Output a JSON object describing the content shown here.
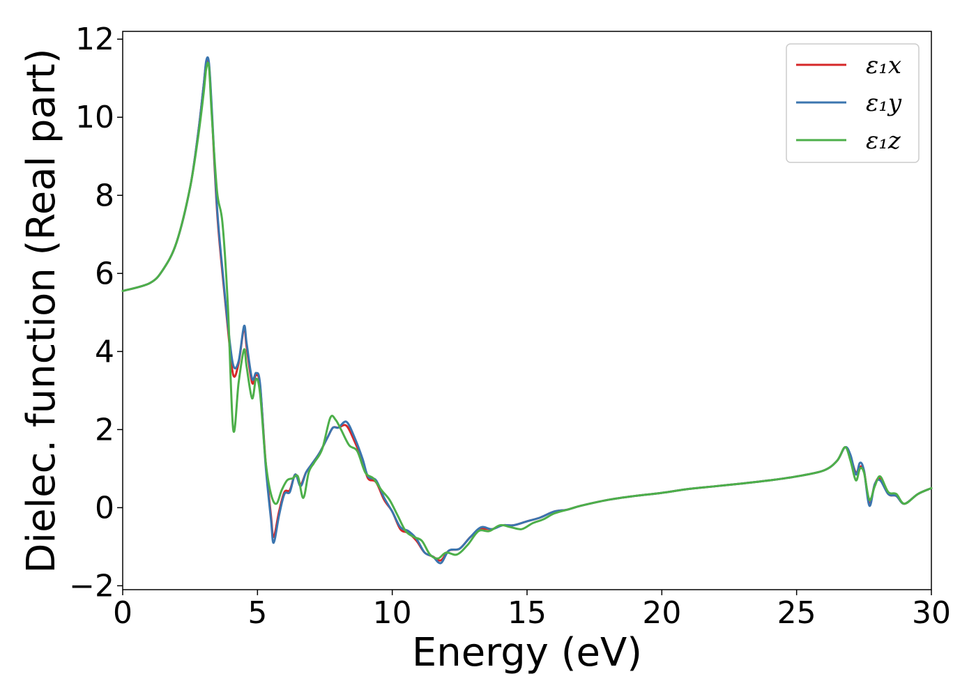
{
  "chart_data": {
    "type": "line",
    "xlabel": "Energy (eV)",
    "ylabel": "Dielec. function (Real part)",
    "xlim": [
      0,
      30
    ],
    "ylim": [
      -2.1,
      12.2
    ],
    "xticks": [
      0,
      5,
      10,
      15,
      20,
      25,
      30
    ],
    "xtick_labels": [
      "0",
      "5",
      "10",
      "15",
      "20",
      "25",
      "30"
    ],
    "yticks": [
      -2,
      0,
      2,
      4,
      6,
      8,
      10,
      12
    ],
    "ytick_labels": [
      "−2",
      "0",
      "2",
      "4",
      "6",
      "8",
      "10",
      "12"
    ],
    "grid": false,
    "legend_position": "top-right",
    "series": [
      {
        "name": "ε₁x",
        "color": "#d62728",
        "x": [
          0,
          1,
          1.5,
          2,
          2.5,
          2.8,
          3.0,
          3.1,
          3.2,
          3.3,
          3.5,
          3.7,
          3.9,
          4.1,
          4.3,
          4.5,
          4.6,
          4.8,
          4.95,
          5.1,
          5.3,
          5.5,
          5.6,
          5.8,
          6.0,
          6.2,
          6.4,
          6.6,
          6.8,
          7.0,
          7.3,
          7.6,
          7.8,
          8.0,
          8.3,
          8.6,
          8.9,
          9.1,
          9.4,
          9.7,
          10.0,
          10.3,
          10.6,
          10.9,
          11.2,
          11.5,
          11.8,
          12.1,
          12.5,
          12.9,
          13.3,
          13.7,
          14.1,
          14.5,
          15.0,
          15.5,
          16.0,
          16.5,
          17.0,
          18.0,
          19.0,
          20.0,
          21.0,
          22.0,
          23.0,
          24.0,
          25.0,
          26.0,
          26.5,
          26.8,
          27.0,
          27.2,
          27.35,
          27.5,
          27.7,
          27.9,
          28.1,
          28.4,
          28.7,
          29.0,
          29.5,
          30.0
        ],
        "y": [
          5.55,
          5.75,
          6.1,
          6.8,
          8.2,
          9.6,
          10.8,
          11.4,
          11.35,
          10.2,
          7.6,
          6.0,
          4.6,
          3.4,
          3.7,
          4.6,
          4.1,
          3.2,
          3.4,
          3.1,
          1.2,
          -0.2,
          -0.75,
          -0.1,
          0.4,
          0.45,
          0.85,
          0.6,
          0.9,
          1.1,
          1.4,
          1.8,
          2.05,
          2.05,
          2.1,
          1.7,
          1.2,
          0.75,
          0.65,
          0.2,
          -0.1,
          -0.55,
          -0.65,
          -0.85,
          -1.15,
          -1.25,
          -1.35,
          -1.1,
          -1.05,
          -0.75,
          -0.55,
          -0.55,
          -0.45,
          -0.45,
          -0.35,
          -0.25,
          -0.1,
          -0.05,
          0.05,
          0.2,
          0.3,
          0.38,
          0.48,
          0.55,
          0.62,
          0.7,
          0.8,
          0.95,
          1.2,
          1.55,
          1.3,
          0.9,
          1.05,
          0.95,
          0.1,
          0.6,
          0.75,
          0.35,
          0.3,
          0.1,
          0.35,
          0.5
        ]
      },
      {
        "name": "ε₁y",
        "color": "#3b75af",
        "x": [
          0,
          1,
          1.5,
          2,
          2.5,
          2.8,
          3.0,
          3.1,
          3.2,
          3.3,
          3.5,
          3.7,
          3.9,
          4.1,
          4.3,
          4.5,
          4.6,
          4.8,
          4.95,
          5.1,
          5.3,
          5.5,
          5.6,
          5.8,
          6.0,
          6.2,
          6.4,
          6.6,
          6.8,
          7.0,
          7.3,
          7.6,
          7.8,
          8.0,
          8.3,
          8.6,
          8.9,
          9.1,
          9.4,
          9.7,
          10.0,
          10.3,
          10.6,
          10.9,
          11.2,
          11.5,
          11.8,
          12.1,
          12.5,
          12.9,
          13.3,
          13.7,
          14.1,
          14.5,
          15.0,
          15.5,
          16.0,
          16.5,
          17.0,
          18.0,
          19.0,
          20.0,
          21.0,
          22.0,
          23.0,
          24.0,
          25.0,
          26.0,
          26.5,
          26.8,
          27.0,
          27.2,
          27.35,
          27.5,
          27.7,
          27.9,
          28.1,
          28.4,
          28.7,
          29.0,
          29.5,
          30.0
        ],
        "y": [
          5.55,
          5.75,
          6.1,
          6.8,
          8.2,
          9.6,
          10.8,
          11.45,
          11.4,
          10.3,
          7.7,
          6.1,
          4.7,
          3.65,
          3.75,
          4.65,
          4.2,
          3.3,
          3.45,
          3.15,
          1.1,
          -0.3,
          -0.9,
          -0.2,
          0.35,
          0.4,
          0.85,
          0.55,
          0.9,
          1.1,
          1.4,
          1.8,
          2.05,
          2.05,
          2.2,
          1.8,
          1.25,
          0.8,
          0.7,
          0.25,
          -0.1,
          -0.5,
          -0.6,
          -0.8,
          -1.15,
          -1.25,
          -1.42,
          -1.1,
          -1.05,
          -0.75,
          -0.5,
          -0.55,
          -0.45,
          -0.45,
          -0.35,
          -0.25,
          -0.1,
          -0.05,
          0.05,
          0.2,
          0.3,
          0.38,
          0.48,
          0.55,
          0.62,
          0.7,
          0.8,
          0.95,
          1.2,
          1.55,
          1.35,
          0.85,
          1.15,
          0.95,
          0.05,
          0.6,
          0.7,
          0.35,
          0.3,
          0.1,
          0.35,
          0.5
        ]
      },
      {
        "name": "ε₁z",
        "color": "#4daf4a",
        "x": [
          0,
          1,
          1.5,
          2,
          2.5,
          2.8,
          3.0,
          3.1,
          3.2,
          3.3,
          3.5,
          3.7,
          3.9,
          4.1,
          4.3,
          4.5,
          4.6,
          4.8,
          4.95,
          5.1,
          5.3,
          5.5,
          5.7,
          5.9,
          6.1,
          6.3,
          6.5,
          6.7,
          6.9,
          7.1,
          7.4,
          7.7,
          7.9,
          8.1,
          8.4,
          8.7,
          9.0,
          9.3,
          9.6,
          9.9,
          10.2,
          10.5,
          10.8,
          11.1,
          11.4,
          11.7,
          12.0,
          12.4,
          12.8,
          13.2,
          13.6,
          14.0,
          14.4,
          14.8,
          15.2,
          15.6,
          16.0,
          16.5,
          17.0,
          18.0,
          19.0,
          20.0,
          21.0,
          22.0,
          23.0,
          24.0,
          25.0,
          26.0,
          26.5,
          26.8,
          27.0,
          27.2,
          27.35,
          27.5,
          27.7,
          27.9,
          28.1,
          28.4,
          28.7,
          29.0,
          29.5,
          30.0
        ],
        "y": [
          5.55,
          5.75,
          6.1,
          6.8,
          8.2,
          9.5,
          10.6,
          11.25,
          11.3,
          10.1,
          8.1,
          7.3,
          5.2,
          2.0,
          3.2,
          4.05,
          3.6,
          2.8,
          3.3,
          2.9,
          1.2,
          0.35,
          0.1,
          0.45,
          0.7,
          0.75,
          0.8,
          0.25,
          0.9,
          1.15,
          1.5,
          2.3,
          2.25,
          2.0,
          1.6,
          1.45,
          0.9,
          0.75,
          0.45,
          0.2,
          -0.2,
          -0.6,
          -0.75,
          -0.85,
          -1.2,
          -1.3,
          -1.15,
          -1.2,
          -0.95,
          -0.6,
          -0.6,
          -0.45,
          -0.5,
          -0.55,
          -0.4,
          -0.3,
          -0.15,
          -0.05,
          0.05,
          0.2,
          0.3,
          0.38,
          0.48,
          0.55,
          0.62,
          0.7,
          0.8,
          0.95,
          1.2,
          1.55,
          1.2,
          0.7,
          1.0,
          0.9,
          0.2,
          0.55,
          0.8,
          0.4,
          0.35,
          0.1,
          0.35,
          0.5
        ]
      }
    ]
  }
}
